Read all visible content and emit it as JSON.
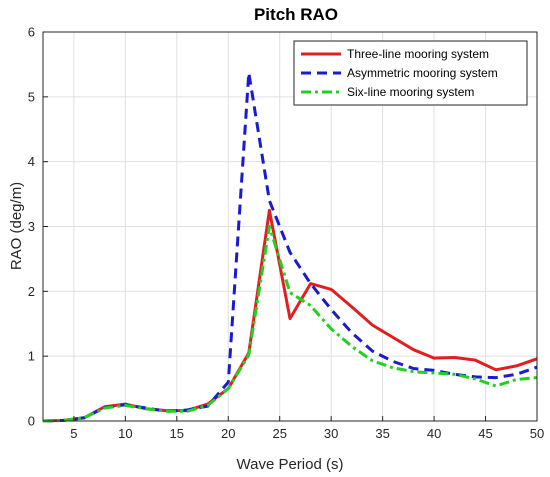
{
  "chart_data": {
    "type": "line",
    "title": "Pitch RAO",
    "xlabel": "Wave Period (s)",
    "ylabel": "RAO (deg/m)",
    "xlim": [
      2,
      50
    ],
    "ylim": [
      0,
      6
    ],
    "xticks": [
      5,
      10,
      15,
      20,
      25,
      30,
      35,
      40,
      45,
      50
    ],
    "yticks": [
      0,
      1,
      2,
      3,
      4,
      5,
      6
    ],
    "grid": true,
    "legend_position": "top-right",
    "x": [
      2,
      4,
      6,
      8,
      10,
      12,
      14,
      16,
      18,
      20,
      22,
      24,
      26,
      28,
      30,
      32,
      34,
      36,
      38,
      40,
      42,
      44,
      46,
      48,
      50
    ],
    "series": [
      {
        "name": "Three-line mooring system",
        "color": "#e02020",
        "dash": "solid",
        "values": [
          0.0,
          0.01,
          0.05,
          0.22,
          0.26,
          0.19,
          0.16,
          0.16,
          0.26,
          0.5,
          1.05,
          3.25,
          1.58,
          2.12,
          2.03,
          1.76,
          1.48,
          1.29,
          1.1,
          0.97,
          0.98,
          0.94,
          0.79,
          0.85,
          0.96
        ]
      },
      {
        "name": "Asymmetric mooring system",
        "color": "#1a1ad0",
        "dash": "dashed",
        "values": [
          0.0,
          0.01,
          0.05,
          0.21,
          0.25,
          0.2,
          0.15,
          0.17,
          0.23,
          0.6,
          5.37,
          3.4,
          2.6,
          2.12,
          1.72,
          1.36,
          1.08,
          0.92,
          0.81,
          0.78,
          0.72,
          0.68,
          0.67,
          0.72,
          0.83
        ]
      },
      {
        "name": "Six-line mooring system",
        "color": "#22d022",
        "dash": "dashdot",
        "values": [
          0.0,
          0.01,
          0.05,
          0.2,
          0.24,
          0.19,
          0.15,
          0.15,
          0.24,
          0.5,
          1.02,
          3.0,
          1.98,
          1.78,
          1.42,
          1.15,
          0.93,
          0.82,
          0.76,
          0.74,
          0.72,
          0.65,
          0.54,
          0.64,
          0.67
        ]
      }
    ]
  }
}
